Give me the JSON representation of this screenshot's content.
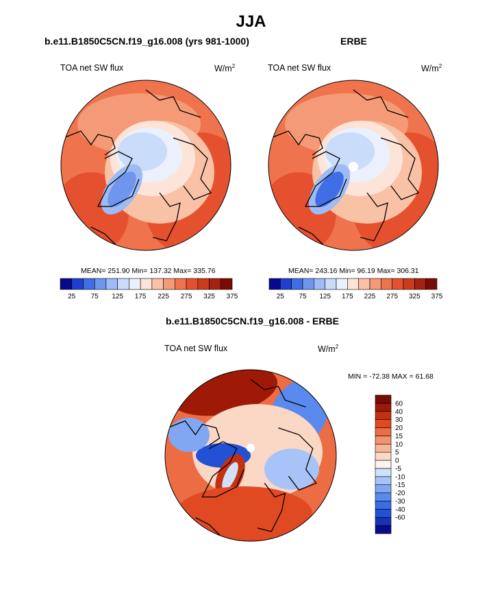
{
  "header": {
    "title": "JJA"
  },
  "panels": [
    {
      "title": "b.e11.B1850C5CN.f19_g16.008 (yrs 981-1000)",
      "variable": "TOA net SW flux",
      "units_base": "W/m",
      "units_exp": "2",
      "stats": "MEAN= 251.90  Min= 137.32  Max= 335.76"
    },
    {
      "title": "ERBE",
      "variable": "TOA net SW flux",
      "units_base": "W/m",
      "units_exp": "2",
      "stats": "MEAN= 243.16  Min=  96.19  Max= 306.31"
    },
    {
      "title": "b.e11.B1850C5CN.f19_g16.008 - ERBE",
      "variable": "TOA net SW flux",
      "units_base": "W/m",
      "units_exp": "2",
      "stats": "MIN = -72.38 MAX =  61.68"
    }
  ],
  "colors": {
    "abs_scale": [
      "#08088c",
      "#1f3fcf",
      "#3f6ee6",
      "#6f95ee",
      "#9dbbf4",
      "#c9dcfa",
      "#eaf1fd",
      "#fde4d8",
      "#f9c1a6",
      "#f59a76",
      "#ef744d",
      "#e5512f",
      "#cb3b1d",
      "#a52110",
      "#7a0c05"
    ],
    "diff_scale": [
      "#0a0a8c",
      "#1833b3",
      "#2251d6",
      "#3a6ce6",
      "#5a8aee",
      "#81a7f3",
      "#a8c3f7",
      "#d2e1fb",
      "#fdf2ec",
      "#fbd8c5",
      "#f7b698",
      "#f2936c",
      "#ec6c43",
      "#e04a23",
      "#c23212",
      "#9e1a06",
      "#7a0b02"
    ],
    "coast": "#000000"
  },
  "chart_data": [
    {
      "type": "heatmap",
      "projection": "north-polar-stereographic",
      "title": "b.e11.B1850C5CN.f19_g16.008 (yrs 981-1000)",
      "variable": "TOA net SW flux",
      "units": "W/m2",
      "season": "JJA",
      "mean": 251.9,
      "min": 137.32,
      "max": 335.76,
      "colorbar_labels": [
        "25",
        "75",
        "125",
        "175",
        "225",
        "275",
        "325",
        "375"
      ],
      "colorbar_orientation": "horizontal",
      "contour_levels": [
        25,
        50,
        75,
        100,
        125,
        150,
        175,
        200,
        225,
        250,
        275,
        300,
        325,
        350
      ]
    },
    {
      "type": "heatmap",
      "projection": "north-polar-stereographic",
      "title": "ERBE",
      "variable": "TOA net SW flux",
      "units": "W/m2",
      "season": "JJA",
      "mean": 243.16,
      "min": 96.19,
      "max": 306.31,
      "colorbar_labels": [
        "25",
        "75",
        "125",
        "175",
        "225",
        "275",
        "325",
        "375"
      ],
      "colorbar_orientation": "horizontal",
      "contour_levels": [
        25,
        50,
        75,
        100,
        125,
        150,
        175,
        200,
        225,
        250,
        275,
        300,
        325,
        350
      ]
    },
    {
      "type": "heatmap",
      "projection": "north-polar-stereographic",
      "title": "b.e11.B1850C5CN.f19_g16.008 - ERBE",
      "variable": "TOA net SW flux",
      "units": "W/m2",
      "min": -72.38,
      "max": 61.68,
      "colorbar_labels": [
        "60",
        "40",
        "30",
        "20",
        "15",
        "10",
        "5",
        "0",
        "-5",
        "-10",
        "-15",
        "-20",
        "-30",
        "-40",
        "-60"
      ],
      "colorbar_orientation": "vertical",
      "contour_levels": [
        -60,
        -40,
        -30,
        -20,
        -15,
        -10,
        -5,
        0,
        5,
        10,
        15,
        20,
        30,
        40,
        60
      ]
    }
  ]
}
